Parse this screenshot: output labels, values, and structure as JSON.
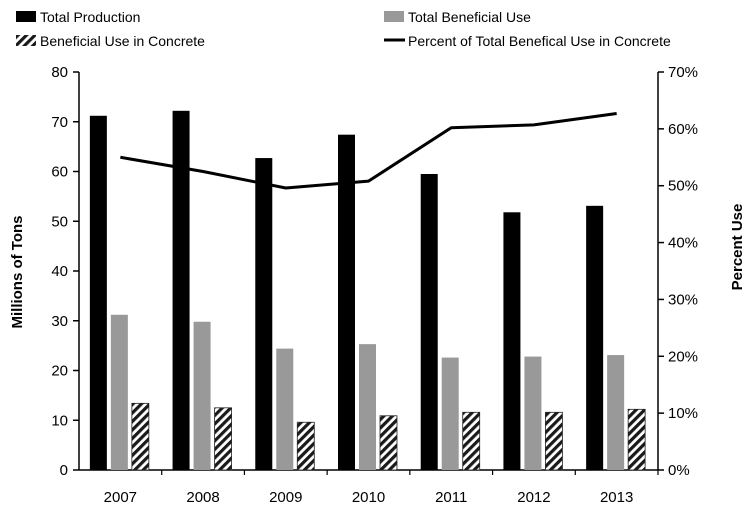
{
  "chart_data": {
    "type": "bar",
    "categories": [
      "2007",
      "2008",
      "2009",
      "2010",
      "2011",
      "2012",
      "2013"
    ],
    "series": [
      {
        "name": "Total Production",
        "kind": "bar",
        "axis": "left",
        "color": "#000000",
        "values": [
          71.2,
          72.2,
          62.7,
          67.4,
          59.5,
          51.8,
          53.1
        ]
      },
      {
        "name": "Total Beneficial Use",
        "kind": "bar",
        "axis": "left",
        "color": "#999999",
        "values": [
          31.2,
          29.8,
          24.4,
          25.3,
          22.6,
          22.8,
          23.1
        ]
      },
      {
        "name": "Beneficial Use in Concrete",
        "kind": "bar",
        "axis": "left",
        "color": "#3a3a3a",
        "pattern": "hatch",
        "values": [
          13.4,
          12.5,
          9.6,
          10.9,
          11.6,
          11.6,
          12.2
        ]
      },
      {
        "name": "Percent of Total Benefical Use in Concrete",
        "kind": "line",
        "axis": "right",
        "color": "#000000",
        "values": [
          55.0,
          52.5,
          49.6,
          50.8,
          60.2,
          60.7,
          62.7
        ]
      }
    ],
    "ylabel": "Millions of Tons",
    "y2label": "Percent Use",
    "ylim": [
      0,
      80
    ],
    "yticks": [
      "0",
      "10",
      "20",
      "30",
      "40",
      "50",
      "60",
      "70",
      "80"
    ],
    "y2lim": [
      0,
      70
    ],
    "y2ticks": [
      "0%",
      "10%",
      "20%",
      "30%",
      "40%",
      "50%",
      "60%",
      "70%"
    ],
    "grid": false,
    "legend": "top"
  }
}
